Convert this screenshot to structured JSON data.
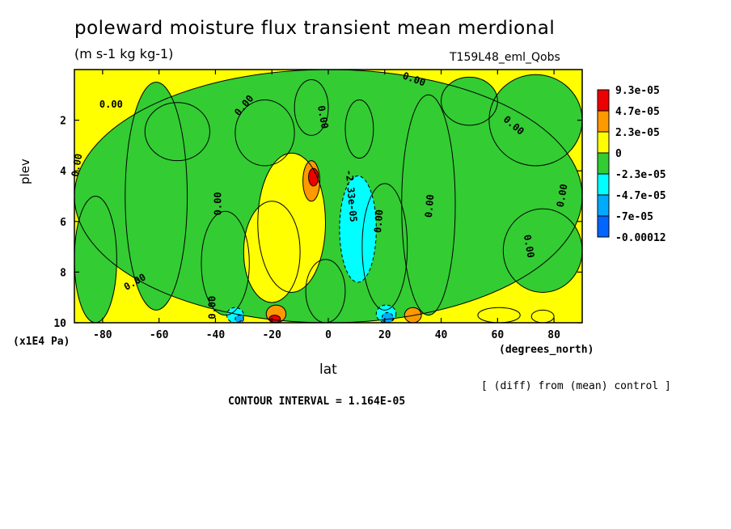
{
  "chart_data": {
    "type": "heatmap",
    "title": "poleward moisture flux transient mean merdional",
    "units": "(m s-1 kg kg-1)",
    "experiment": "T159L48_eml_Qobs",
    "xlabel": "lat",
    "ylabel": "plev",
    "x_unit": "(degrees_north)",
    "y_unit": "(x1E4 Pa)",
    "xlim": [
      -90,
      90
    ],
    "ylim": [
      10,
      0
    ],
    "x_ticks": [
      -80,
      -60,
      -40,
      -20,
      0,
      20,
      40,
      60,
      80
    ],
    "x_tick_labels": [
      "-80",
      "-60",
      "-40",
      "-20",
      "0",
      "20",
      "40",
      "60",
      "80"
    ],
    "y_ticks": [
      2,
      4,
      6,
      8,
      10
    ],
    "y_tick_labels": [
      "2",
      "4",
      "6",
      "8",
      "10"
    ],
    "colorbar": {
      "labels": [
        "9.3e-05",
        "4.7e-05",
        "2.3e-05",
        "0",
        "-2.3e-05",
        "-4.7e-05",
        "-7e-05",
        "-0.00012"
      ],
      "colors": [
        "#ee0000",
        "#ff9900",
        "#ffff00",
        "#33cc33",
        "#00ffff",
        "#00aaff",
        "#0066ff"
      ]
    },
    "contour_labels": [
      "0.00",
      "-2.33e-05",
      "2.33e-05"
    ],
    "contour_interval_text": "CONTOUR INTERVAL = 1.164E-05",
    "note": "[ (diff) from (mean) control ]",
    "regions": [
      {
        "x": [
          -90,
          90
        ],
        "y": [
          0,
          10
        ],
        "level": 0
      },
      {
        "x": [
          -72,
          -50
        ],
        "y": [
          0.5,
          9.5
        ],
        "level": 0
      },
      {
        "x": [
          -65,
          -42
        ],
        "y": [
          1.3,
          3.6
        ],
        "level": 0
      },
      {
        "x": [
          -45,
          -28
        ],
        "y": [
          5.6,
          9.7
        ],
        "level": 0
      },
      {
        "x": [
          -33,
          -12
        ],
        "y": [
          1.2,
          3.8
        ],
        "level": 0
      },
      {
        "x": [
          -12,
          0
        ],
        "y": [
          0.4,
          2.6
        ],
        "level": 0
      },
      {
        "x": [
          -8,
          6
        ],
        "y": [
          7.5,
          10
        ],
        "level": 0
      },
      {
        "x": [
          6,
          16
        ],
        "y": [
          1.2,
          3.5
        ],
        "level": 0
      },
      {
        "x": [
          12,
          28
        ],
        "y": [
          4.5,
          9.5
        ],
        "level": 0
      },
      {
        "x": [
          26,
          45
        ],
        "y": [
          1.0,
          9.7
        ],
        "level": 0
      },
      {
        "x": [
          40,
          60
        ],
        "y": [
          0.3,
          2.2
        ],
        "level": 0
      },
      {
        "x": [
          57,
          90
        ],
        "y": [
          0.2,
          3.8
        ],
        "level": 0
      },
      {
        "x": [
          62,
          90
        ],
        "y": [
          5.5,
          8.8
        ],
        "level": 0
      },
      {
        "x": [
          -90,
          -75
        ],
        "y": [
          5,
          10
        ],
        "level": 0
      },
      {
        "x": [
          -25,
          -1
        ],
        "y": [
          3.3,
          8.8
        ],
        "level": 1
      },
      {
        "x": [
          -30,
          -10
        ],
        "y": [
          5.2,
          9.2
        ],
        "level": 1
      },
      {
        "x": [
          -9,
          -3
        ],
        "y": [
          3.6,
          5.2
        ],
        "level": 2
      },
      {
        "x": [
          -7,
          -3.5
        ],
        "y": [
          3.9,
          4.6
        ],
        "level": 3
      },
      {
        "x": [
          -22,
          -15
        ],
        "y": [
          9.3,
          10
        ],
        "level": 2
      },
      {
        "x": [
          -21,
          -17
        ],
        "y": [
          9.7,
          10
        ],
        "level": 3
      },
      {
        "x": [
          27,
          33
        ],
        "y": [
          9.4,
          10
        ],
        "level": 2
      },
      {
        "x": [
          53,
          68
        ],
        "y": [
          9.4,
          10
        ],
        "level": 1
      },
      {
        "x": [
          72,
          80
        ],
        "y": [
          9.5,
          10
        ],
        "level": 1
      },
      {
        "x": [
          4,
          17
        ],
        "y": [
          4.2,
          8.4
        ],
        "level": -1
      },
      {
        "x": [
          -36,
          -30
        ],
        "y": [
          9.4,
          10
        ],
        "level": -1
      },
      {
        "x": [
          -33,
          -30
        ],
        "y": [
          9.7,
          10
        ],
        "level": -2
      },
      {
        "x": [
          17,
          24
        ],
        "y": [
          9.3,
          10
        ],
        "level": -1
      },
      {
        "x": [
          19,
          23
        ],
        "y": [
          9.6,
          10
        ],
        "level": -2
      }
    ]
  }
}
